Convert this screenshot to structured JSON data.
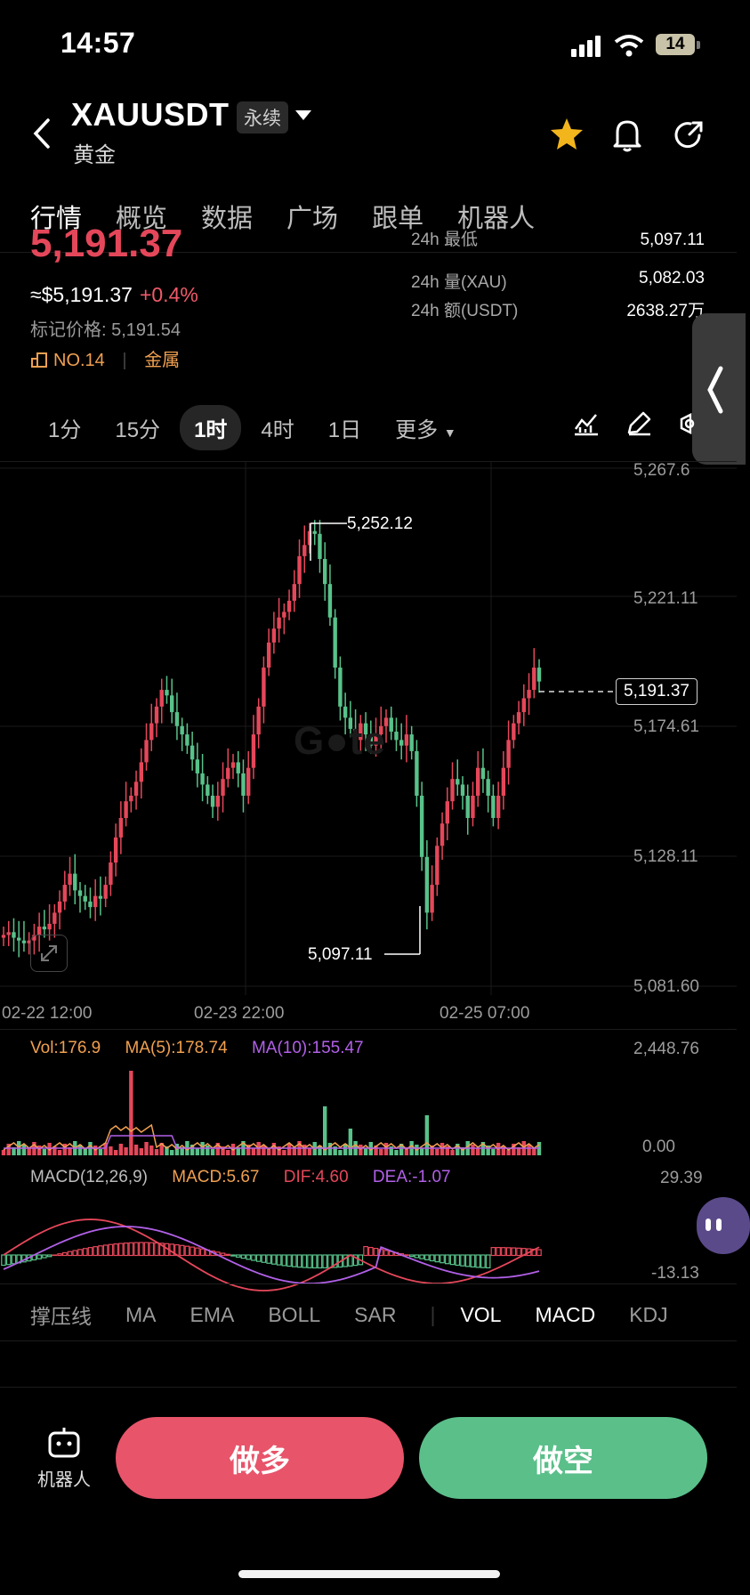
{
  "status": {
    "time": "14:57",
    "battery": "14"
  },
  "header": {
    "symbol": "XAUUSDT",
    "contract_type": "永续",
    "name": "黄金"
  },
  "tabs": [
    "行情",
    "概览",
    "数据",
    "广场",
    "跟单",
    "机器人"
  ],
  "price": {
    "last_partial": "5,191.37",
    "approx_usd": "≈$5,191.37",
    "change": "+0.4%",
    "mark_price": "标记价格: 5,191.54",
    "rank": "NO.14",
    "category": "金属"
  },
  "stats": [
    {
      "label": "24h  最低",
      "value": "5,097.11"
    },
    {
      "label": "24h  量(XAU)",
      "value": "5,082.03"
    },
    {
      "label": "24h  额(USDT)",
      "value": "2638.27万"
    }
  ],
  "intervals": [
    "1分",
    "15分",
    "1时",
    "4时",
    "1日",
    "更多"
  ],
  "active_interval": "1时",
  "main_chart": {
    "y_ticks": [
      "5,267.6",
      "5,221.11",
      "5,174.61",
      "5,128.11",
      "5,081.60"
    ],
    "x_ticks": [
      "02-22 12:00",
      "02-23 22:00",
      "02-25 07:00"
    ],
    "high_label": "5,252.12",
    "low_label": "5,097.11",
    "current_price": "5,191.37",
    "colors": {
      "up": "#e5475a",
      "down": "#58c28a",
      "bg": "#000000"
    }
  },
  "volume": {
    "vol": "Vol:176.9",
    "ma5": "MA(5):178.74",
    "ma10": "MA(10):155.47",
    "max": "2,448.76",
    "min": "0.00"
  },
  "macd": {
    "title": "MACD(12,26,9)",
    "macd": "MACD:5.67",
    "dif": "DIF:4.60",
    "dea": "DEA:-1.07",
    "max": "29.39",
    "min": "-13.13"
  },
  "indicator_tabs": [
    "撑压线",
    "MA",
    "EMA",
    "BOLL",
    "SAR",
    "VOL",
    "MACD",
    "KDJ"
  ],
  "actions": {
    "robot": "机器人",
    "long": "做多",
    "short": "做空"
  }
}
